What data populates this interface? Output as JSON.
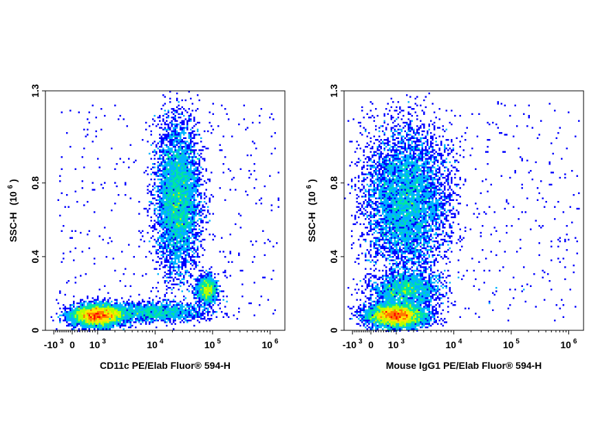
{
  "chart_data": [
    {
      "type": "scatter",
      "subtype": "flow-cytometry-density",
      "xlabel": "CD11c PE/Elab Fluor® 594-H",
      "ylabel": "SSC-H",
      "ylabel_unit_base": "(10",
      "ylabel_unit_exp": "6",
      "ylabel_unit_close": ")",
      "x_scale": "biexponential",
      "y_scale": "linear",
      "ylim": [
        0,
        1.3
      ],
      "xticks": [
        {
          "base": "-10",
          "exp": "3",
          "value": -1000
        },
        {
          "base": "0",
          "exp": "",
          "value": 0
        },
        {
          "base": "10",
          "exp": "3",
          "value": 1000
        },
        {
          "base": "10",
          "exp": "4",
          "value": 10000
        },
        {
          "base": "10",
          "exp": "5",
          "value": 100000
        },
        {
          "base": "10",
          "exp": "6",
          "value": 1000000
        }
      ],
      "yticks": [
        "0",
        "0.4",
        "0.8",
        "1.3"
      ],
      "ytick_values": [
        0,
        0.4,
        0.8,
        1.3
      ],
      "color_scale": [
        "#0000ff",
        "#00b4ff",
        "#00e6a0",
        "#b4ff00",
        "#ffe600",
        "#ff7800",
        "#ff0000"
      ],
      "populations": [
        {
          "x_center": 1000,
          "y_center": 0.08,
          "density": "high"
        },
        {
          "x_center": 25000,
          "y_center": 0.72,
          "density": "high"
        },
        {
          "x_center": 80000,
          "y_center": 0.22,
          "density": "medium"
        },
        {
          "x_center": 10000,
          "y_center": 0.1,
          "density": "low"
        }
      ]
    },
    {
      "type": "scatter",
      "subtype": "flow-cytometry-density",
      "xlabel": "Mouse IgG1 PE/Elab Fluor® 594-H",
      "ylabel": "SSC-H",
      "ylabel_unit_base": "(10",
      "ylabel_unit_exp": "6",
      "ylabel_unit_close": ")",
      "x_scale": "biexponential",
      "y_scale": "linear",
      "ylim": [
        0,
        1.3
      ],
      "xticks": [
        {
          "base": "-10",
          "exp": "3",
          "value": -1000
        },
        {
          "base": "0",
          "exp": "",
          "value": 0
        },
        {
          "base": "10",
          "exp": "3",
          "value": 1000
        },
        {
          "base": "10",
          "exp": "4",
          "value": 10000
        },
        {
          "base": "10",
          "exp": "5",
          "value": 100000
        },
        {
          "base": "10",
          "exp": "6",
          "value": 1000000
        }
      ],
      "yticks": [
        "0",
        "0.4",
        "0.8",
        "1.3"
      ],
      "ytick_values": [
        0,
        0.4,
        0.8,
        1.3
      ],
      "color_scale": [
        "#0000ff",
        "#00b4ff",
        "#00e6a0",
        "#b4ff00",
        "#ffe600",
        "#ff7800",
        "#ff0000"
      ],
      "populations": [
        {
          "x_center": 1000,
          "y_center": 0.08,
          "density": "high"
        },
        {
          "x_center": 1500,
          "y_center": 0.7,
          "density": "high"
        },
        {
          "x_center": 1500,
          "y_center": 0.22,
          "density": "medium"
        }
      ]
    }
  ]
}
